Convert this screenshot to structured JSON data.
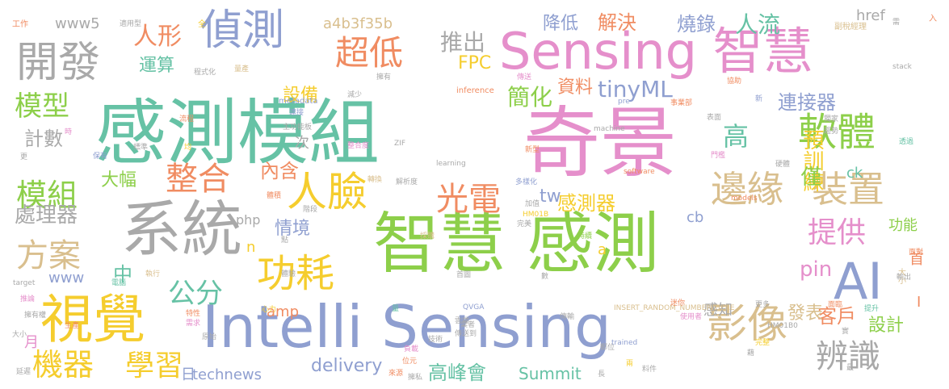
{
  "palette": {
    "green": "#8dcf4a",
    "pink": "#e58fcb",
    "blue": "#8f9fd0",
    "gray": "#a9a9a9",
    "orange": "#f08c62",
    "yellow": "#f5cd2e",
    "teal": "#66c2a5",
    "tan": "#d9bf8e"
  },
  "words": [
    {
      "text": "智慧 感測",
      "color": "green"
    },
    {
      "text": "Intelli Sensing",
      "color": "blue"
    },
    {
      "text": "感測模組",
      "color": "teal"
    },
    {
      "text": "奇景",
      "color": "pink"
    },
    {
      "text": "Sensing 智慧",
      "color": "pink"
    },
    {
      "text": "系統",
      "color": "gray"
    },
    {
      "text": "開發",
      "color": "gray"
    },
    {
      "text": "偵測",
      "color": "blue"
    },
    {
      "text": "AI",
      "color": "blue"
    },
    {
      "text": "視覺",
      "color": "yellow"
    },
    {
      "text": "影像",
      "color": "tan"
    },
    {
      "text": "邊緣",
      "color": "tan"
    },
    {
      "text": "裝置",
      "color": "tan"
    },
    {
      "text": "軟體",
      "color": "green"
    },
    {
      "text": "人臉",
      "color": "yellow"
    },
    {
      "text": "功耗",
      "color": "yellow"
    },
    {
      "text": "整合",
      "color": "orange"
    },
    {
      "text": "超低",
      "color": "orange"
    },
    {
      "text": "光電",
      "color": "orange"
    },
    {
      "text": "提供",
      "color": "pink"
    },
    {
      "text": "辨識",
      "color": "gray"
    },
    {
      "text": "機器",
      "color": "yellow"
    },
    {
      "text": "學習",
      "color": "yellow"
    },
    {
      "text": "方案",
      "color": "tan"
    },
    {
      "text": "模組",
      "color": "green"
    },
    {
      "text": "模型",
      "color": "green"
    },
    {
      "text": "公分",
      "color": "teal"
    },
    {
      "text": "高",
      "color": "teal"
    },
    {
      "text": "推出",
      "color": "gray"
    },
    {
      "text": "人形",
      "color": "orange"
    },
    {
      "text": "降低",
      "color": "blue"
    },
    {
      "text": "解決",
      "color": "orange"
    },
    {
      "text": "燒錄",
      "color": "blue"
    },
    {
      "text": "人流",
      "color": "teal"
    },
    {
      "text": "運算",
      "color": "teal"
    },
    {
      "text": "設備",
      "color": "yellow"
    },
    {
      "text": "簡化",
      "color": "green"
    },
    {
      "text": "資料",
      "color": "orange"
    },
    {
      "text": "tinyML",
      "color": "blue"
    },
    {
      "text": "連接器",
      "color": "blue"
    },
    {
      "text": "預訓練",
      "color": "yellow"
    },
    {
      "text": "計數",
      "color": "gray"
    },
    {
      "text": "大幅",
      "color": "green"
    },
    {
      "text": "內含",
      "color": "orange"
    },
    {
      "text": "感測器",
      "color": "yellow"
    },
    {
      "text": "情境",
      "color": "blue"
    },
    {
      "text": "處理器",
      "color": "gray"
    },
    {
      "text": "僅",
      "color": "green"
    },
    {
      "text": "客戶",
      "color": "orange"
    },
    {
      "text": "設計",
      "color": "green"
    },
    {
      "text": "發表",
      "color": "tan"
    },
    {
      "text": "高峰會",
      "color": "teal"
    },
    {
      "text": "Summit",
      "color": "teal"
    },
    {
      "text": "delivery",
      "color": "blue"
    },
    {
      "text": "technews",
      "color": "blue"
    },
    {
      "text": "FPC",
      "color": "yellow"
    },
    {
      "text": "a4b3f35b",
      "color": "tan"
    },
    {
      "text": "www5",
      "color": "gray"
    },
    {
      "text": "href",
      "color": "gray"
    },
    {
      "text": "pin",
      "color": "pink"
    },
    {
      "text": "php",
      "color": "gray"
    },
    {
      "text": "amp",
      "color": "orange"
    },
    {
      "text": "www",
      "color": "blue"
    },
    {
      "text": "tw",
      "color": "blue"
    },
    {
      "text": "cb",
      "color": "blue"
    },
    {
      "text": "ck",
      "color": "teal"
    },
    {
      "text": "功能",
      "color": "green"
    },
    {
      "text": "中",
      "color": "teal"
    },
    {
      "text": "感知",
      "color": "gray"
    },
    {
      "text": "首",
      "color": "orange"
    },
    {
      "text": "大小",
      "color": "tan"
    },
    {
      "text": "月",
      "color": "pink"
    },
    {
      "text": "日",
      "color": "blue"
    },
    {
      "text": "I",
      "color": "orange"
    },
    {
      "text": "n",
      "color": "yellow"
    },
    {
      "text": "a",
      "color": "yellow"
    },
    {
      "text": "次",
      "color": "gray"
    },
    {
      "text": "工作",
      "color": "orange"
    },
    {
      "text": "適用型",
      "color": "gray"
    },
    {
      "text": "全",
      "color": "yellow"
    },
    {
      "text": "副稅經理",
      "color": "tan"
    },
    {
      "text": "需",
      "color": "gray"
    },
    {
      "text": "入",
      "color": "orange"
    },
    {
      "text": "inference",
      "color": "orange"
    },
    {
      "text": "程式化",
      "color": "gray"
    },
    {
      "text": "量產",
      "color": "tan"
    },
    {
      "text": "傳送",
      "color": "pink"
    },
    {
      "text": "stack",
      "color": "gray"
    },
    {
      "text": "擁有",
      "color": "gray"
    },
    {
      "text": "metadata",
      "color": "blue"
    },
    {
      "text": "連接",
      "color": "blue"
    },
    {
      "text": "減少",
      "color": "gray"
    },
    {
      "text": "pre",
      "color": "blue"
    },
    {
      "text": "事業部",
      "color": "orange"
    },
    {
      "text": "表面",
      "color": "gray"
    },
    {
      "text": "新",
      "color": "blue"
    },
    {
      "text": "協助",
      "color": "orange"
    },
    {
      "text": "獨家",
      "color": "gray"
    },
    {
      "text": "趨勢",
      "color": "gray"
    },
    {
      "text": "流程",
      "color": "orange"
    },
    {
      "text": "主功能板",
      "color": "gray"
    },
    {
      "text": "machine",
      "color": "gray"
    },
    {
      "text": "時",
      "color": "pink"
    },
    {
      "text": "均",
      "color": "yellow"
    },
    {
      "text": "標準",
      "color": "gray"
    },
    {
      "text": "保有",
      "color": "blue"
    },
    {
      "text": "更",
      "color": "gray"
    },
    {
      "text": "整合度",
      "color": "pink"
    },
    {
      "text": "ZIF",
      "color": "gray"
    },
    {
      "text": "新型",
      "color": "orange"
    },
    {
      "text": "門檻",
      "color": "pink"
    },
    {
      "text": "硬體",
      "color": "gray"
    },
    {
      "text": "透過",
      "color": "teal"
    },
    {
      "text": "learning",
      "color": "gray"
    },
    {
      "text": "解析度",
      "color": "gray"
    },
    {
      "text": "多樣化",
      "color": "blue"
    },
    {
      "text": "software",
      "color": "orange"
    },
    {
      "text": "體積",
      "color": "orange"
    },
    {
      "text": "轉換",
      "color": "tan"
    },
    {
      "text": "加值",
      "color": "gray"
    },
    {
      "text": "models",
      "color": "orange"
    },
    {
      "text": "HM01B",
      "color": "yellow"
    },
    {
      "text": "階段",
      "color": "gray"
    },
    {
      "text": "完美",
      "color": "gray"
    },
    {
      "text": "採購",
      "color": "tan"
    },
    {
      "text": "點",
      "color": "gray"
    },
    {
      "text": "持續",
      "color": "green"
    },
    {
      "text": "首圖",
      "color": "gray"
    },
    {
      "text": "數",
      "color": "gray"
    },
    {
      "text": "面對",
      "color": "orange"
    },
    {
      "text": "輸出",
      "color": "gray"
    },
    {
      "text": "target",
      "color": "gray"
    },
    {
      "text": "執行",
      "color": "tan"
    },
    {
      "text": "電腦",
      "color": "teal"
    },
    {
      "text": "體驗",
      "color": "gray"
    },
    {
      "text": "量",
      "color": "teal"
    },
    {
      "text": "QVGA",
      "color": "blue"
    },
    {
      "text": "INSERT_RANDOM_NUMBER_HERE",
      "color": "tan"
    },
    {
      "text": "使用者",
      "color": "pink"
    },
    {
      "text": "迷你",
      "color": "orange"
    },
    {
      "text": "更多",
      "color": "gray"
    },
    {
      "text": "面臨",
      "color": "orange"
    },
    {
      "text": "提升",
      "color": "teal"
    },
    {
      "text": "推論",
      "color": "pink"
    },
    {
      "text": "擁有權",
      "color": "gray"
    },
    {
      "text": "生產",
      "color": "orange"
    },
    {
      "text": "心力",
      "color": "yellow"
    },
    {
      "text": "特性",
      "color": "orange"
    },
    {
      "text": "需求",
      "color": "pink"
    },
    {
      "text": "傳送到",
      "color": "gray"
    },
    {
      "text": "業者",
      "color": "gray"
    },
    {
      "text": "傳輸",
      "color": "gray"
    },
    {
      "text": "HM01B0",
      "color": "gray"
    },
    {
      "text": "trained",
      "color": "blue"
    },
    {
      "text": "雲端",
      "color": "gray"
    },
    {
      "text": "實",
      "color": "gray"
    },
    {
      "text": "原始",
      "color": "gray"
    },
    {
      "text": "大小",
      "color": "gray"
    },
    {
      "text": "負載",
      "color": "pink"
    },
    {
      "text": "郵位",
      "color": "gray"
    },
    {
      "text": "技術",
      "color": "gray"
    },
    {
      "text": "兩",
      "color": "yellow"
    },
    {
      "text": "最",
      "color": "gray"
    },
    {
      "text": "延遲",
      "color": "gray"
    },
    {
      "text": "位元",
      "color": "orange"
    },
    {
      "text": "擁私",
      "color": "gray"
    },
    {
      "text": "長",
      "color": "gray"
    },
    {
      "text": "料件",
      "color": "gray"
    },
    {
      "text": "來源",
      "color": "orange"
    },
    {
      "text": "藉",
      "color": "gray"
    },
    {
      "text": "完整",
      "color": "yellow"
    },
    {
      "text": "移除",
      "color": "orange"
    }
  ]
}
